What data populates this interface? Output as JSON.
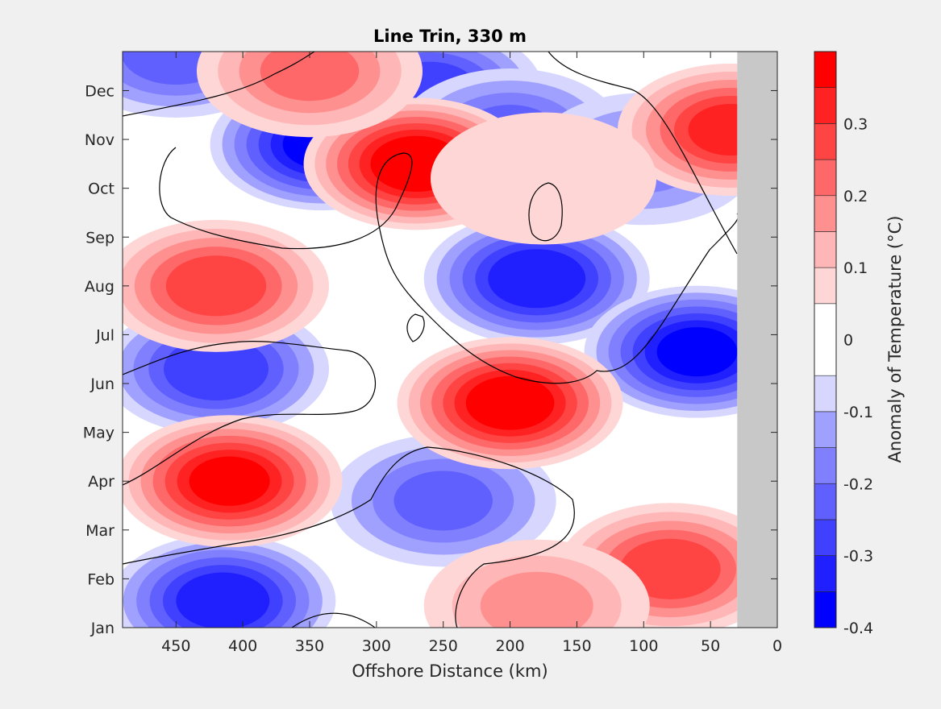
{
  "chart_data": {
    "type": "heatmap",
    "title": "Line Trin, 330 m",
    "xlabel": "Offshore Distance (km)",
    "ylabel": "",
    "x_reversed": true,
    "xlim": [
      490,
      0
    ],
    "x_ticks": [
      450,
      400,
      350,
      300,
      250,
      200,
      150,
      100,
      50,
      0
    ],
    "y_ticks": [
      "Jan",
      "Feb",
      "Mar",
      "Apr",
      "May",
      "Jun",
      "Jul",
      "Aug",
      "Sep",
      "Oct",
      "Nov",
      "Dec"
    ],
    "no_data_region_km": [
      0,
      30
    ],
    "colorbar": {
      "label": "Anomaly of Temperature (°C)",
      "range": [
        -0.4,
        0.4
      ],
      "tick_values": [
        -0.4,
        -0.3,
        -0.2,
        -0.1,
        0,
        0.1,
        0.2,
        0.3
      ],
      "tick_labels": [
        "-0.4",
        "-0.3",
        "-0.2",
        "-0.1",
        "0",
        "0.1",
        "0.2",
        "0.3"
      ],
      "levels": [
        -0.4,
        -0.35,
        -0.3,
        -0.25,
        -0.2,
        -0.15,
        -0.1,
        -0.05,
        0.05,
        0.1,
        0.15,
        0.2,
        0.25,
        0.3,
        0.35,
        0.4
      ],
      "colors": [
        "#0000ff",
        "#2020ff",
        "#4040ff",
        "#6060ff",
        "#8080ff",
        "#a0a0ff",
        "#d6d6ff",
        "#ffffff",
        "#ffd6d6",
        "#ffb6b6",
        "#ff9090",
        "#ff6868",
        "#ff4444",
        "#ff2222",
        "#ff0000"
      ]
    },
    "anomaly_centers": [
      {
        "x_km": 340,
        "month": 9.9,
        "value": -0.35
      },
      {
        "x_km": 415,
        "month": 0.55,
        "value": -0.32
      },
      {
        "x_km": 420,
        "month": 5.3,
        "value": -0.28
      },
      {
        "x_km": 180,
        "month": 7.15,
        "value": -0.33
      },
      {
        "x_km": 60,
        "month": 5.65,
        "value": -0.35
      },
      {
        "x_km": 260,
        "month": 11.0,
        "value": -0.26
      },
      {
        "x_km": 200,
        "month": 10.1,
        "value": -0.2
      },
      {
        "x_km": 250,
        "month": 2.6,
        "value": -0.2
      },
      {
        "x_km": 450,
        "month": 11.8,
        "value": -0.22
      },
      {
        "x_km": 100,
        "month": 9.6,
        "value": -0.15
      },
      {
        "x_km": 270,
        "month": 9.5,
        "value": 0.38
      },
      {
        "x_km": 410,
        "month": 3.0,
        "value": 0.35
      },
      {
        "x_km": 200,
        "month": 4.6,
        "value": 0.37
      },
      {
        "x_km": 35,
        "month": 10.2,
        "value": 0.3
      },
      {
        "x_km": 80,
        "month": 1.2,
        "value": 0.27
      },
      {
        "x_km": 420,
        "month": 7.0,
        "value": 0.27
      },
      {
        "x_km": 350,
        "month": 11.4,
        "value": 0.2
      },
      {
        "x_km": 180,
        "month": 0.45,
        "value": 0.15
      },
      {
        "x_km": 175,
        "month": 9.2,
        "value": 0.06
      }
    ]
  }
}
